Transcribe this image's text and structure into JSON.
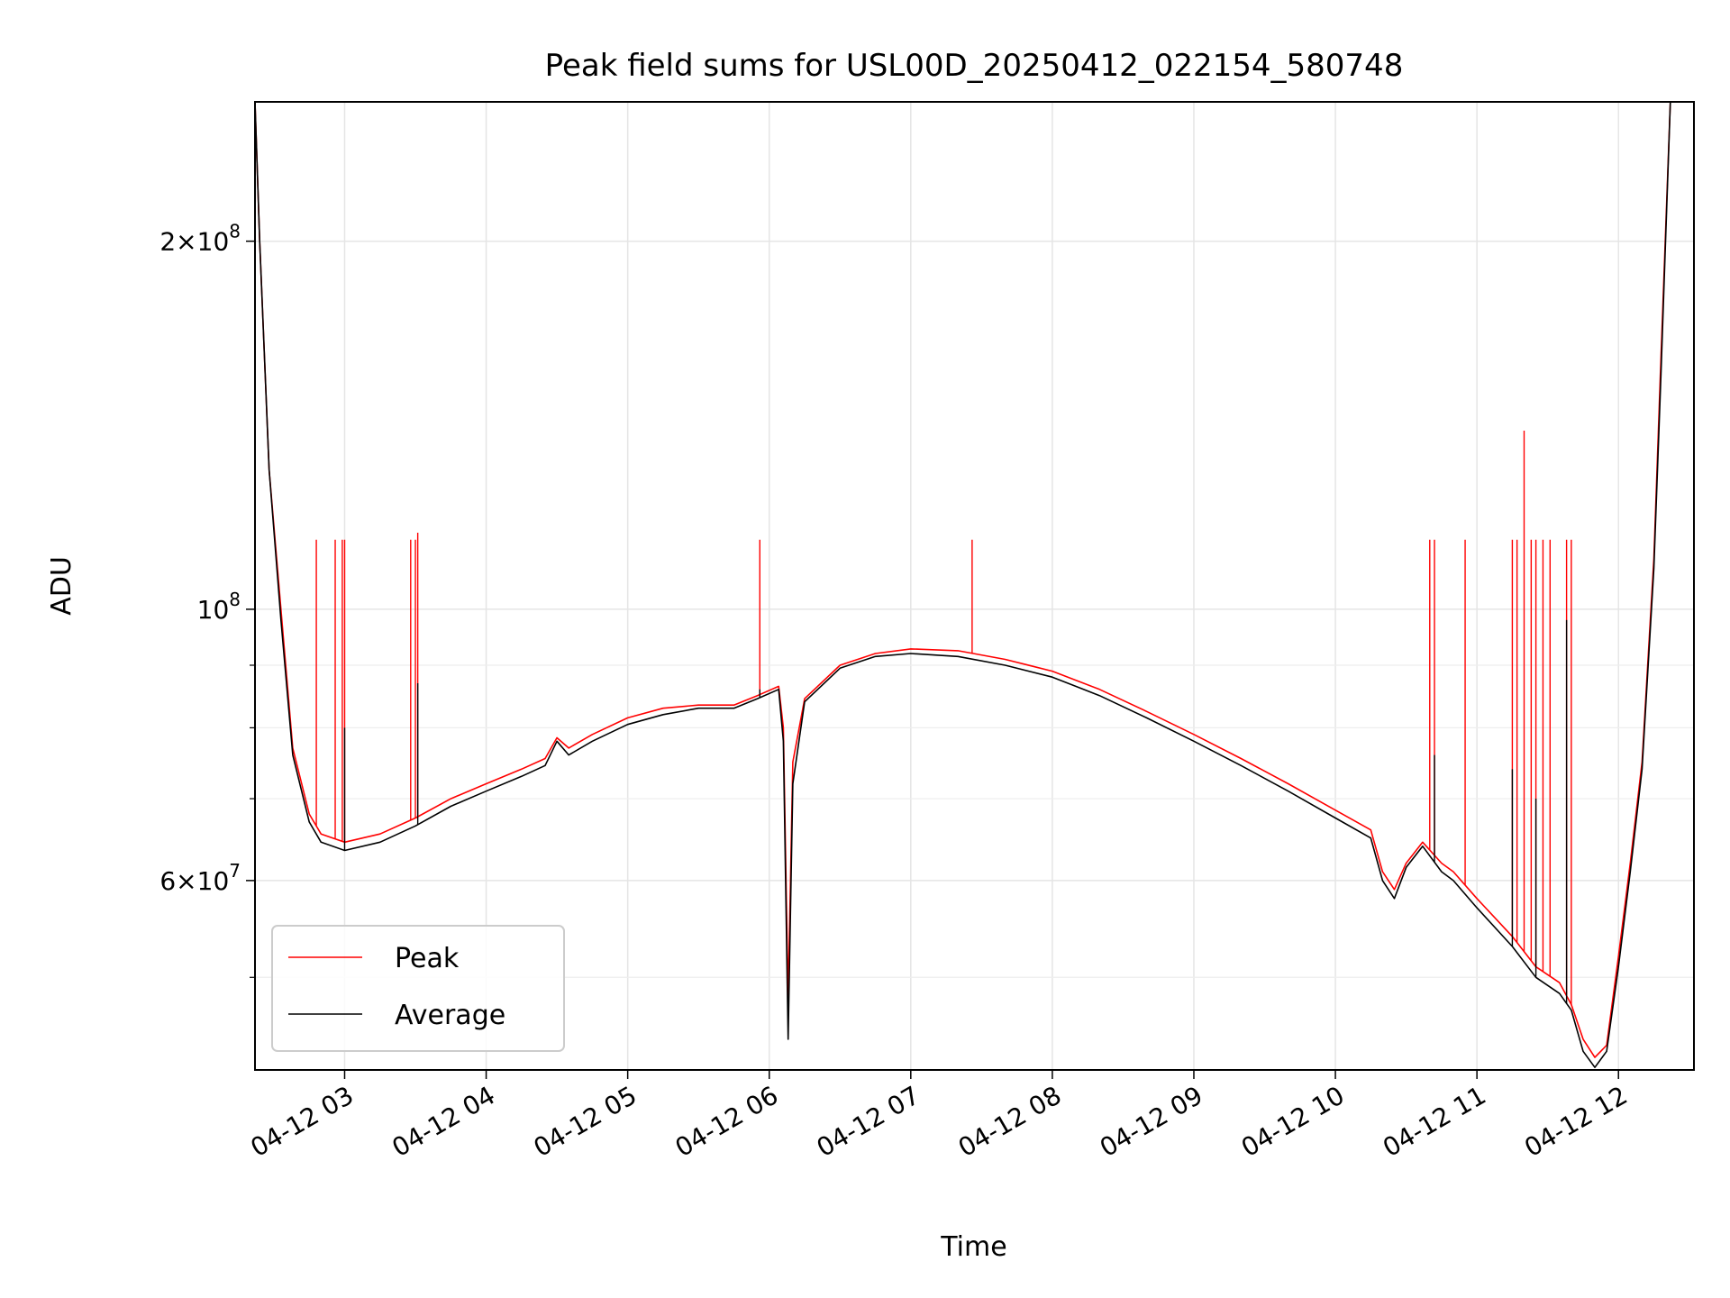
{
  "chart_data": {
    "type": "line",
    "title": "Peak field sums for USL00D_20250412_022154_580748",
    "xlabel": "Time",
    "ylabel": "ADU",
    "y_scale": "log",
    "ylim": [
      42000000,
      260000000
    ],
    "xlim": [
      "2025-04-12 02:22",
      "2025-04-12 12:32"
    ],
    "grid": true,
    "legend_position": "lower-left",
    "x_ticks": [
      {
        "t": "2025-04-12 03:00",
        "label": "04-12 03"
      },
      {
        "t": "2025-04-12 04:00",
        "label": "04-12 04"
      },
      {
        "t": "2025-04-12 05:00",
        "label": "04-12 05"
      },
      {
        "t": "2025-04-12 06:00",
        "label": "04-12 06"
      },
      {
        "t": "2025-04-12 07:00",
        "label": "04-12 07"
      },
      {
        "t": "2025-04-12 08:00",
        "label": "04-12 08"
      },
      {
        "t": "2025-04-12 09:00",
        "label": "04-12 09"
      },
      {
        "t": "2025-04-12 10:00",
        "label": "04-12 10"
      },
      {
        "t": "2025-04-12 11:00",
        "label": "04-12 11"
      },
      {
        "t": "2025-04-12 12:00",
        "label": "04-12 12"
      }
    ],
    "y_major_ticks": [
      {
        "value": 60000000,
        "mantissa": "6",
        "exp": "7"
      },
      {
        "value": 100000000,
        "mantissa": "",
        "exp": "8"
      },
      {
        "value": 200000000,
        "mantissa": "2",
        "exp": "8"
      }
    ],
    "y_minor_ticks": [
      50000000,
      70000000,
      80000000,
      90000000
    ],
    "series": [
      {
        "name": "Peak",
        "color": "#ff0000",
        "points": [
          [
            "2025-04-12 02:22",
            260000000
          ],
          [
            "2025-04-12 02:24",
            200000000
          ],
          [
            "2025-04-12 02:28",
            130000000
          ],
          [
            "2025-04-12 02:33",
            100000000
          ],
          [
            "2025-04-12 02:38",
            77000000
          ],
          [
            "2025-04-12 02:45",
            68000000
          ],
          [
            "2025-04-12 02:50",
            65500000
          ],
          [
            "2025-04-12 03:00",
            64500000
          ],
          [
            "2025-04-12 03:15",
            65500000
          ],
          [
            "2025-04-12 03:30",
            67500000
          ],
          [
            "2025-04-12 03:45",
            70000000
          ],
          [
            "2025-04-12 04:00",
            72000000
          ],
          [
            "2025-04-12 04:15",
            74000000
          ],
          [
            "2025-04-12 04:25",
            75500000
          ],
          [
            "2025-04-12 04:30",
            78500000
          ],
          [
            "2025-04-12 04:35",
            77000000
          ],
          [
            "2025-04-12 04:45",
            79000000
          ],
          [
            "2025-04-12 05:00",
            81500000
          ],
          [
            "2025-04-12 05:15",
            83000000
          ],
          [
            "2025-04-12 05:30",
            83500000
          ],
          [
            "2025-04-12 05:45",
            83500000
          ],
          [
            "2025-04-12 05:55",
            85000000
          ],
          [
            "2025-04-12 06:04",
            86500000
          ],
          [
            "2025-04-12 06:06",
            80000000
          ],
          [
            "2025-04-12 06:08",
            48000000
          ],
          [
            "2025-04-12 06:10",
            75000000
          ],
          [
            "2025-04-12 06:15",
            84500000
          ],
          [
            "2025-04-12 06:30",
            90000000
          ],
          [
            "2025-04-12 06:45",
            92000000
          ],
          [
            "2025-04-12 07:00",
            92800000
          ],
          [
            "2025-04-12 07:20",
            92500000
          ],
          [
            "2025-04-12 07:40",
            91000000
          ],
          [
            "2025-04-12 08:00",
            89000000
          ],
          [
            "2025-04-12 08:20",
            86000000
          ],
          [
            "2025-04-12 08:40",
            82500000
          ],
          [
            "2025-04-12 09:00",
            79000000
          ],
          [
            "2025-04-12 09:20",
            75500000
          ],
          [
            "2025-04-12 09:40",
            72000000
          ],
          [
            "2025-04-12 10:00",
            68500000
          ],
          [
            "2025-04-12 10:15",
            66000000
          ],
          [
            "2025-04-12 10:20",
            61000000
          ],
          [
            "2025-04-12 10:25",
            59000000
          ],
          [
            "2025-04-12 10:30",
            62000000
          ],
          [
            "2025-04-12 10:37",
            64500000
          ],
          [
            "2025-04-12 10:45",
            62000000
          ],
          [
            "2025-04-12 10:50",
            61000000
          ],
          [
            "2025-04-12 11:00",
            58000000
          ],
          [
            "2025-04-12 11:15",
            54000000
          ],
          [
            "2025-04-12 11:25",
            51000000
          ],
          [
            "2025-04-12 11:35",
            49500000
          ],
          [
            "2025-04-12 11:40",
            47500000
          ],
          [
            "2025-04-12 11:45",
            44500000
          ],
          [
            "2025-04-12 11:50",
            43000000
          ],
          [
            "2025-04-12 11:55",
            44000000
          ],
          [
            "2025-04-12 12:00",
            52000000
          ],
          [
            "2025-04-12 12:05",
            62000000
          ],
          [
            "2025-04-12 12:10",
            75000000
          ],
          [
            "2025-04-12 12:15",
            110000000
          ],
          [
            "2025-04-12 12:18",
            160000000
          ],
          [
            "2025-04-12 12:22",
            260000000
          ]
        ],
        "spikes": [
          [
            "2025-04-12 02:48",
            114000000
          ],
          [
            "2025-04-12 02:56",
            114000000
          ],
          [
            "2025-04-12 02:59",
            114000000
          ],
          [
            "2025-04-12 03:00",
            114000000
          ],
          [
            "2025-04-12 03:28",
            114000000
          ],
          [
            "2025-04-12 03:30",
            114000000
          ],
          [
            "2025-04-12 03:31",
            115500000
          ],
          [
            "2025-04-12 05:56",
            114000000
          ],
          [
            "2025-04-12 07:26",
            114000000
          ],
          [
            "2025-04-12 10:40",
            114000000
          ],
          [
            "2025-04-12 10:42",
            114000000
          ],
          [
            "2025-04-12 10:55",
            114000000
          ],
          [
            "2025-04-12 11:15",
            114000000
          ],
          [
            "2025-04-12 11:17",
            114000000
          ],
          [
            "2025-04-12 11:20",
            140000000
          ],
          [
            "2025-04-12 11:23",
            114000000
          ],
          [
            "2025-04-12 11:25",
            114000000
          ],
          [
            "2025-04-12 11:28",
            114000000
          ],
          [
            "2025-04-12 11:31",
            114000000
          ],
          [
            "2025-04-12 11:38",
            114000000
          ],
          [
            "2025-04-12 11:40",
            114000000
          ]
        ]
      },
      {
        "name": "Average",
        "color": "#000000",
        "points": [
          [
            "2025-04-12 02:22",
            260000000
          ],
          [
            "2025-04-12 02:24",
            200000000
          ],
          [
            "2025-04-12 02:28",
            130000000
          ],
          [
            "2025-04-12 02:33",
            98000000
          ],
          [
            "2025-04-12 02:38",
            76000000
          ],
          [
            "2025-04-12 02:45",
            67000000
          ],
          [
            "2025-04-12 02:50",
            64500000
          ],
          [
            "2025-04-12 03:00",
            63500000
          ],
          [
            "2025-04-12 03:15",
            64500000
          ],
          [
            "2025-04-12 03:30",
            66500000
          ],
          [
            "2025-04-12 03:45",
            69000000
          ],
          [
            "2025-04-12 04:00",
            71000000
          ],
          [
            "2025-04-12 04:15",
            73000000
          ],
          [
            "2025-04-12 04:25",
            74500000
          ],
          [
            "2025-04-12 04:30",
            78000000
          ],
          [
            "2025-04-12 04:35",
            76000000
          ],
          [
            "2025-04-12 04:45",
            78000000
          ],
          [
            "2025-04-12 05:00",
            80500000
          ],
          [
            "2025-04-12 05:15",
            82000000
          ],
          [
            "2025-04-12 05:30",
            83000000
          ],
          [
            "2025-04-12 05:45",
            83000000
          ],
          [
            "2025-04-12 05:55",
            84500000
          ],
          [
            "2025-04-12 06:04",
            86000000
          ],
          [
            "2025-04-12 06:06",
            78000000
          ],
          [
            "2025-04-12 06:08",
            44500000
          ],
          [
            "2025-04-12 06:10",
            72000000
          ],
          [
            "2025-04-12 06:15",
            84000000
          ],
          [
            "2025-04-12 06:30",
            89500000
          ],
          [
            "2025-04-12 06:45",
            91500000
          ],
          [
            "2025-04-12 07:00",
            92000000
          ],
          [
            "2025-04-12 07:20",
            91500000
          ],
          [
            "2025-04-12 07:40",
            90000000
          ],
          [
            "2025-04-12 08:00",
            88000000
          ],
          [
            "2025-04-12 08:20",
            85000000
          ],
          [
            "2025-04-12 08:40",
            81500000
          ],
          [
            "2025-04-12 09:00",
            78000000
          ],
          [
            "2025-04-12 09:20",
            74500000
          ],
          [
            "2025-04-12 09:40",
            71000000
          ],
          [
            "2025-04-12 10:00",
            67500000
          ],
          [
            "2025-04-12 10:15",
            65000000
          ],
          [
            "2025-04-12 10:20",
            60000000
          ],
          [
            "2025-04-12 10:25",
            58000000
          ],
          [
            "2025-04-12 10:30",
            61500000
          ],
          [
            "2025-04-12 10:37",
            64000000
          ],
          [
            "2025-04-12 10:45",
            61000000
          ],
          [
            "2025-04-12 10:50",
            60000000
          ],
          [
            "2025-04-12 11:00",
            57000000
          ],
          [
            "2025-04-12 11:15",
            53000000
          ],
          [
            "2025-04-12 11:25",
            50000000
          ],
          [
            "2025-04-12 11:35",
            48500000
          ],
          [
            "2025-04-12 11:40",
            47000000
          ],
          [
            "2025-04-12 11:45",
            43500000
          ],
          [
            "2025-04-12 11:50",
            42200000
          ],
          [
            "2025-04-12 11:55",
            43500000
          ],
          [
            "2025-04-12 12:00",
            51000000
          ],
          [
            "2025-04-12 12:05",
            61000000
          ],
          [
            "2025-04-12 12:10",
            74000000
          ],
          [
            "2025-04-12 12:15",
            108000000
          ],
          [
            "2025-04-12 12:18",
            155000000
          ],
          [
            "2025-04-12 12:22",
            260000000
          ]
        ],
        "spikes": [
          [
            "2025-04-12 03:00",
            80000000
          ],
          [
            "2025-04-12 03:31",
            87000000
          ],
          [
            "2025-04-12 05:56",
            86000000
          ],
          [
            "2025-04-12 10:42",
            76000000
          ],
          [
            "2025-04-12 11:15",
            74000000
          ],
          [
            "2025-04-12 11:25",
            70000000
          ],
          [
            "2025-04-12 11:38",
            98000000
          ]
        ]
      }
    ]
  }
}
